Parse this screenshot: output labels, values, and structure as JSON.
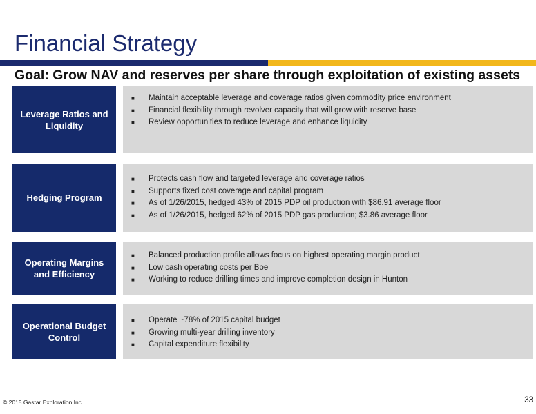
{
  "title": "Financial Strategy",
  "goal": "Goal: Grow NAV and reserves per share through exploitation of existing assets",
  "sections": [
    {
      "label": "Leverage Ratios and Liquidity",
      "bullets": [
        "Maintain acceptable leverage and coverage ratios given commodity price environment",
        "Financial flexibility through revolver capacity that will grow with reserve base",
        "Review opportunities to reduce leverage and enhance liquidity"
      ]
    },
    {
      "label": "Hedging Program",
      "bullets": [
        "Protects cash flow and targeted leverage and coverage ratios",
        "Supports fixed cost coverage and capital program",
        "As of 1/26/2015, hedged 43% of 2015 PDP oil production with $86.91 average floor",
        "As of 1/26/2015, hedged 62% of 2015 PDP gas production; $3.86 average floor"
      ]
    },
    {
      "label": "Operating Margins and Efficiency",
      "bullets": [
        "Balanced production profile allows focus on highest operating margin product",
        "Low cash operating costs per Boe",
        "Working to reduce drilling times and improve completion design in Hunton"
      ]
    },
    {
      "label": "Operational Budget Control",
      "bullets": [
        "Operate ~78% of 2015 capital budget",
        "Growing multi-year drilling inventory",
        "Capital expenditure flexibility"
      ]
    }
  ],
  "footer": "© 2015 Gastar Exploration Inc.",
  "page_number": "33",
  "colors": {
    "navy": "#1b2a6e",
    "gold": "#f2b71b",
    "panel_gray": "#d8d8d8"
  },
  "bullet_icon": "square-bullet-icon"
}
